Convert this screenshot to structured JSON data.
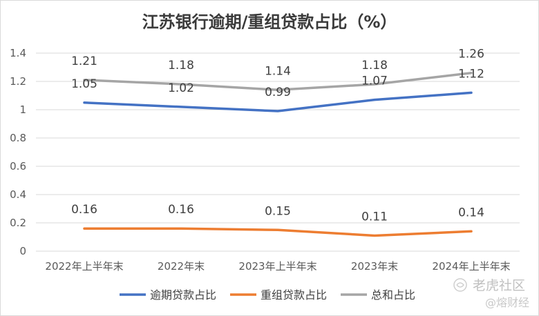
{
  "chart_data": {
    "type": "line",
    "title": "江苏银行逾期/重组贷款占比（%）",
    "categories": [
      "2022年上半年末",
      "2022年末",
      "2023年上半年末",
      "2023年末",
      "2024年上半年末"
    ],
    "series": [
      {
        "name": "逾期贷款占比",
        "values": [
          1.05,
          1.02,
          0.99,
          1.07,
          1.12
        ],
        "color": "#4472c4"
      },
      {
        "name": "重组贷款占比",
        "values": [
          0.16,
          0.16,
          0.15,
          0.11,
          0.14
        ],
        "color": "#ed7d31"
      },
      {
        "name": "总和占比",
        "values": [
          1.21,
          1.18,
          1.14,
          1.18,
          1.26
        ],
        "color": "#a5a5a5"
      }
    ],
    "ylim": [
      0,
      1.4
    ],
    "yticks": [
      "0",
      "0.2",
      "0.4",
      "0.6",
      "0.8",
      "1",
      "1.2",
      "1.4"
    ],
    "grid": true,
    "legend_position": "bottom",
    "xlabel": "",
    "ylabel": ""
  },
  "watermark": {
    "brand": "老虎社区",
    "handle": "@熔财经"
  }
}
